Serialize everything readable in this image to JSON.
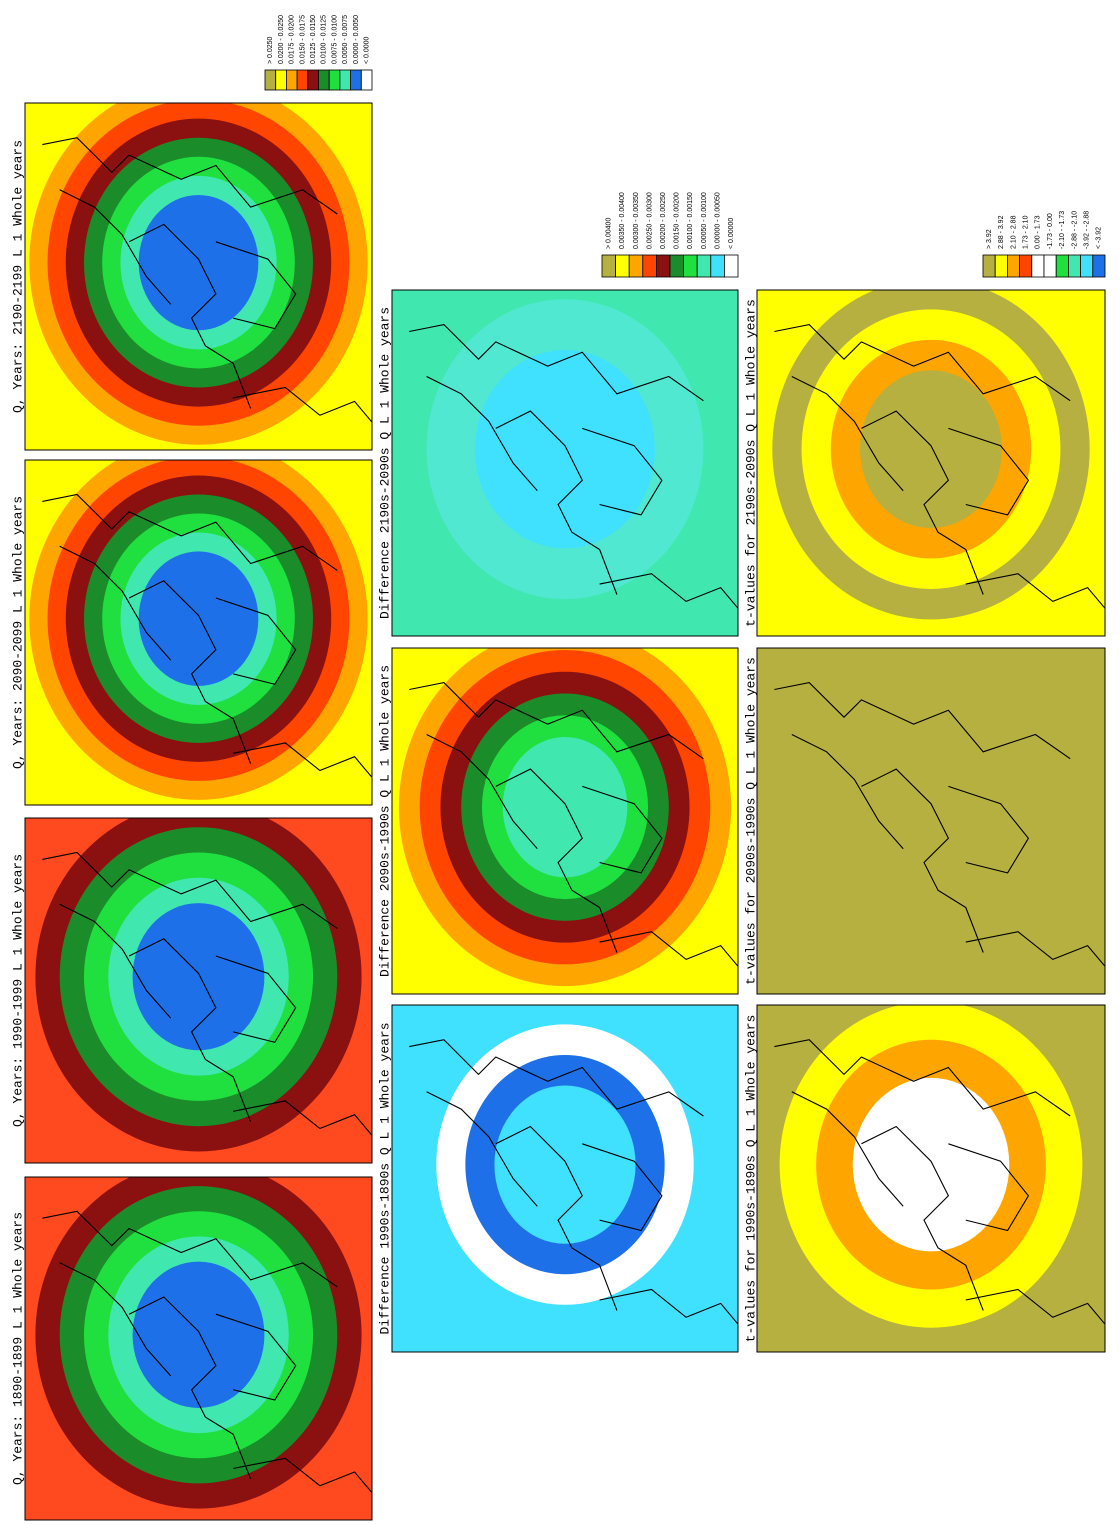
{
  "panels": [
    {
      "title": "Q, Years: 2190-2199 L 1 Whole years",
      "colors": [
        "#ffff00",
        "#ffa500",
        "#ff4500",
        "#8b1010",
        "#1a8c2a",
        "#20e040",
        "#40e8b0",
        "#1e70e8"
      ]
    },
    {
      "title": "Q, Years: 2090-2099 L 1 Whole years",
      "colors": [
        "#ffff00",
        "#ffa500",
        "#ff4500",
        "#8b1010",
        "#1a8c2a",
        "#20e040",
        "#40e8b0",
        "#1e70e8"
      ]
    },
    {
      "title": "Q, Years: 1990-1999 L 1 Whole years",
      "colors": [
        "#ff4a20",
        "#8b1010",
        "#1a8c2a",
        "#20e040",
        "#40e8b0",
        "#1e70e8"
      ]
    },
    {
      "title": "Q, Years: 1890-1899 L 1 Whole years",
      "colors": [
        "#ff4a20",
        "#8b1010",
        "#1a8c2a",
        "#20e040",
        "#40e8b0",
        "#1e70e8"
      ]
    },
    {
      "title": "Difference 2190s-2090s Q L 1 Whole years",
      "colors": [
        "#40e8b0",
        "#50e8d0",
        "#40e0ff"
      ]
    },
    {
      "title": "Difference 2090s-1990s Q L 1 Whole years",
      "colors": [
        "#ffff00",
        "#ffa500",
        "#ff4500",
        "#8b1010",
        "#1a8c2a",
        "#20e040",
        "#40e8b0"
      ]
    },
    {
      "title": "Difference 1990s-1890s Q L 1 Whole years",
      "colors": [
        "#40e0ff",
        "#40e0ff",
        "#ffffff",
        "#1e70e8",
        "#40e0ff"
      ]
    },
    {
      "title": "t-values for 2190s-2090s Q L 1 Whole years",
      "colors": [
        "#ffff00",
        "#b5b040",
        "#ffff00",
        "#ffa500",
        "#b5b040"
      ]
    },
    {
      "title": "t-values for 2090s-1990s Q L 1 Whole years",
      "colors": [
        "#b5b040"
      ]
    },
    {
      "title": "t-values for 1990s-1890s Q L 1 Whole years",
      "colors": [
        "#b5b040",
        "#ffff00",
        "#ffa500",
        "#ffffff"
      ]
    }
  ],
  "legends": [
    {
      "labels": [
        "> 0.0250",
        "0.0200 - 0.0250",
        "0.0175 - 0.0200",
        "0.0150 - 0.0175",
        "0.0125 - 0.0150",
        "0.0100 - 0.0125",
        "0.0075 - 0.0100",
        "0.0050 - 0.0075",
        "0.0000 - 0.0050",
        "< 0.0000"
      ],
      "colors": [
        "#b5b040",
        "#ffff00",
        "#ffa500",
        "#ff4500",
        "#8b1010",
        "#1a8c2a",
        "#20e040",
        "#40e8b0",
        "#1e70e8",
        "#ffffff"
      ]
    },
    {
      "labels": [
        "> 0.00400",
        "0.00350 - 0.00400",
        "0.00300 - 0.00350",
        "0.00250 - 0.00300",
        "0.00200 - 0.00250",
        "0.00150 - 0.00200",
        "0.00100 - 0.00150",
        "0.00050 - 0.00100",
        "0.00000 - 0.00050",
        "< 0.00000"
      ],
      "colors": [
        "#b5b040",
        "#ffff00",
        "#ffa500",
        "#ff4500",
        "#8b1010",
        "#1a8c2a",
        "#20e040",
        "#40e8b0",
        "#40e0ff",
        "#ffffff"
      ]
    },
    {
      "labels": [
        "> 3.92",
        "2.88 - 3.92",
        "2.10 - 2.88",
        "1.73 - 2.10",
        "0.00 - 1.73",
        "-1.73 - 0.00",
        "-2.10 - -1.73",
        "-2.88 - -2.10",
        "-3.92 - -2.88",
        "< -3.92"
      ],
      "colors": [
        "#b5b040",
        "#ffff00",
        "#ffa500",
        "#ff4500",
        "#ffffff",
        "#ffffff",
        "#20e040",
        "#40e8b0",
        "#40e0ff",
        "#1e70e8"
      ]
    }
  ]
}
